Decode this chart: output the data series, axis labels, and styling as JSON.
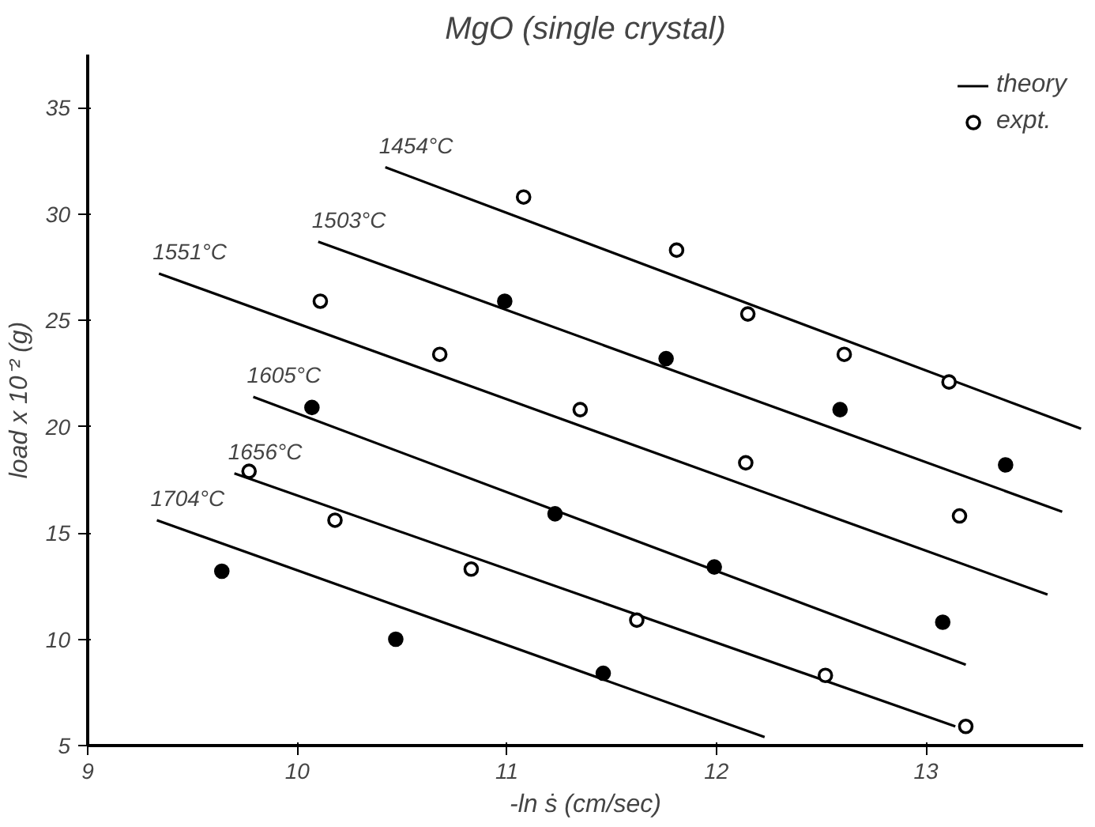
{
  "chart_data": {
    "type": "line",
    "title": "MgO (single crystal)",
    "xlabel": "-ln ṡ (cm/sec)",
    "ylabel": "load x 10⁻² (g)",
    "xlim": [
      9,
      13.75
    ],
    "ylim": [
      5,
      37.5
    ],
    "xticks": [
      9,
      10,
      11,
      12,
      13
    ],
    "yticks": [
      5,
      10,
      15,
      20,
      25,
      30,
      35
    ],
    "grid": false,
    "legend": "top right",
    "line_style": "solid",
    "series": [
      {
        "name": "theory",
        "color": "#000000",
        "x": [
          10.42,
          13.74
        ],
        "values": [
          32.2,
          19.9
        ]
      },
      {
        "color": "#000000",
        "x": [
          10.1,
          13.65
        ],
        "values": [
          28.7,
          16.0
        ]
      },
      {
        "color": "#000000",
        "x": [
          9.34,
          13.58
        ],
        "values": [
          27.2,
          12.1
        ]
      },
      {
        "color": "#000000",
        "x": [
          9.79,
          13.19
        ],
        "values": [
          21.4,
          8.8
        ]
      },
      {
        "color": "#000000",
        "x": [
          9.7,
          13.14
        ],
        "values": [
          17.8,
          5.9
        ]
      },
      {
        "color": "#000000",
        "x": [
          9.33,
          12.23
        ],
        "values": [
          15.6,
          5.4
        ]
      },
      {
        "name": "expt.",
        "type": "scatter",
        "marker": "circle",
        "color": "#ffffff",
        "x": [
          11.08,
          11.81,
          12.15,
          13.11,
          12.61,
          10.11,
          10.68,
          11.35,
          12.14,
          13.16,
          9.77,
          10.18,
          10.83,
          11.62,
          12.52,
          13.19
        ],
        "values": [
          30.8,
          28.3,
          25.3,
          22.1,
          23.4,
          25.9,
          23.4,
          20.8,
          18.3,
          15.8,
          17.9,
          15.6,
          13.3,
          10.9,
          8.3,
          5.9
        ]
      },
      {
        "type": "scatter",
        "marker": "circle",
        "color": "#000000",
        "x": [
          10.99,
          11.76,
          12.59,
          13.38,
          10.07,
          11.23,
          11.99,
          13.08,
          9.64,
          10.47,
          11.46
        ],
        "values": [
          25.9,
          23.2,
          20.8,
          18.2,
          20.9,
          15.9,
          13.4,
          10.8,
          13.2,
          10.0,
          8.4
        ]
      }
    ],
    "annotations": [
      {
        "text": "1454°C",
        "x": 10.42,
        "y": 32.2
      },
      {
        "text": "1503°C",
        "x": 10.1,
        "y": 28.7
      },
      {
        "text": "1551°C",
        "x": 9.34,
        "y": 27.2
      },
      {
        "text": "1605°C",
        "x": 9.79,
        "y": 21.4
      },
      {
        "text": "1656°C",
        "x": 9.7,
        "y": 17.8
      },
      {
        "text": "1704°C",
        "x": 9.33,
        "y": 15.6
      }
    ]
  }
}
